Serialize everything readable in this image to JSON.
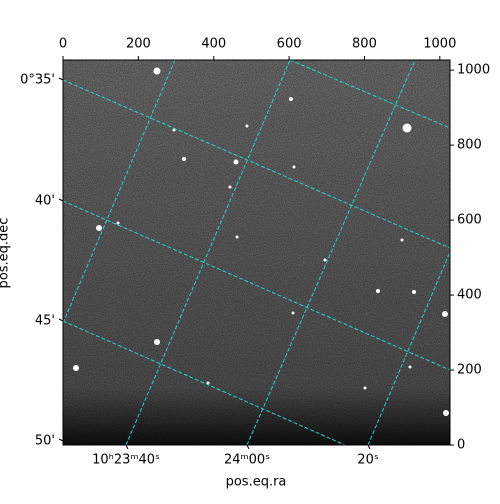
{
  "chart_data": {
    "type": "image",
    "xlabel": "pos.eq.ra",
    "ylabel": "pos.eq.dec",
    "xlim": [
      0,
      1027
    ],
    "ylim": [
      0,
      1027
    ],
    "xticks": [
      0,
      200,
      400,
      600,
      800,
      1000
    ],
    "yticks": [
      0,
      200,
      400,
      600,
      800,
      1000
    ],
    "ra_ticks": [
      "10ʰ23ᵐ40ˢ",
      "24ᵐ00ˢ",
      "20ˢ"
    ],
    "dec_ticks": [
      "0°35'",
      "40'",
      "45'",
      "50'"
    ]
  }
}
